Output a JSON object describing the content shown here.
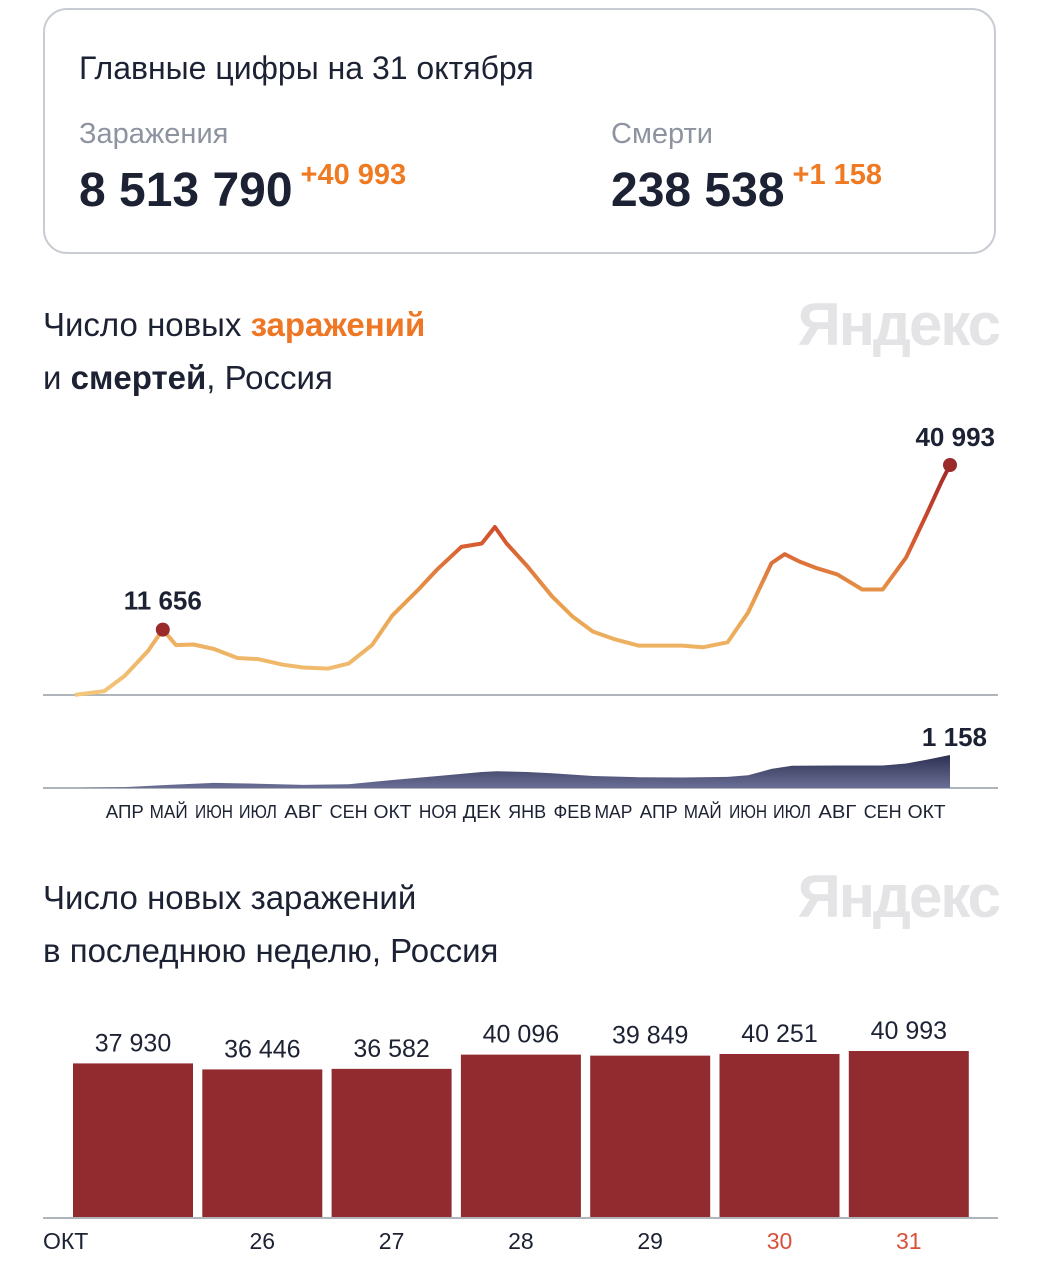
{
  "summary": {
    "title": "Главные цифры на 31 октября",
    "infections": {
      "label": "Заражения",
      "value": "8 513 790",
      "delta": "+40 993"
    },
    "deaths": {
      "label": "Смерти",
      "value": "238 538",
      "delta": "+1 158"
    }
  },
  "colors": {
    "accent_orange": "#ef7a22",
    "bar_red": "#922b30",
    "deaths_area": "#4a4e6e",
    "text_dark": "#1c2233"
  },
  "logo_text": "Яндекс",
  "chart1_title": {
    "part1": "Число новых ",
    "part2": "заражений",
    "part3": "и ",
    "part4": "смертей",
    "part5": ", Россия"
  },
  "chart2_title": {
    "line1": "Число новых заражений",
    "line2": "в последнюю неделю, Россия"
  },
  "chart_data": [
    {
      "type": "line",
      "series": [
        {
          "name": "заражений",
          "points": [
            [
              "2020-03-12",
              10
            ],
            [
              "2020-04-01",
              700
            ],
            [
              "2020-04-15",
              3400
            ],
            [
              "2020-05-01",
              7900
            ],
            [
              "2020-05-11",
              11656
            ],
            [
              "2020-05-20",
              8900
            ],
            [
              "2020-06-01",
              9000
            ],
            [
              "2020-06-15",
              8200
            ],
            [
              "2020-07-01",
              6600
            ],
            [
              "2020-07-15",
              6400
            ],
            [
              "2020-08-01",
              5400
            ],
            [
              "2020-08-15",
              4900
            ],
            [
              "2020-09-01",
              4700
            ],
            [
              "2020-09-15",
              5600
            ],
            [
              "2020-10-01",
              8900
            ],
            [
              "2020-10-15",
              14200
            ],
            [
              "2020-11-01",
              18600
            ],
            [
              "2020-11-15",
              22500
            ],
            [
              "2020-12-01",
              26400
            ],
            [
              "2020-12-15",
              27000
            ],
            [
              "2020-12-24",
              29935
            ],
            [
              "2021-01-01",
              27000
            ],
            [
              "2021-01-15",
              23000
            ],
            [
              "2021-02-01",
              17600
            ],
            [
              "2021-02-15",
              14000
            ],
            [
              "2021-03-01",
              11300
            ],
            [
              "2021-03-15",
              10000
            ],
            [
              "2021-04-01",
              8800
            ],
            [
              "2021-04-15",
              8800
            ],
            [
              "2021-05-01",
              8800
            ],
            [
              "2021-05-15",
              8500
            ],
            [
              "2021-06-01",
              9400
            ],
            [
              "2021-06-15",
              14700
            ],
            [
              "2021-07-01",
              23500
            ],
            [
              "2021-07-10",
              25100
            ],
            [
              "2021-07-20",
              23800
            ],
            [
              "2021-08-01",
              22600
            ],
            [
              "2021-08-15",
              21500
            ],
            [
              "2021-09-01",
              18800
            ],
            [
              "2021-09-15",
              18800
            ],
            [
              "2021-10-01",
              24500
            ],
            [
              "2021-10-15",
              32200
            ],
            [
              "2021-10-25",
              37900
            ],
            [
              "2021-10-31",
              40993
            ]
          ]
        },
        {
          "name": "смертей",
          "type": "area",
          "points": [
            [
              "2020-03-12",
              0
            ],
            [
              "2020-04-15",
              30
            ],
            [
              "2020-05-15",
              110
            ],
            [
              "2020-06-15",
              180
            ],
            [
              "2020-07-15",
              150
            ],
            [
              "2020-08-15",
              110
            ],
            [
              "2020-09-15",
              130
            ],
            [
              "2020-10-15",
              280
            ],
            [
              "2020-11-15",
              420
            ],
            [
              "2020-12-15",
              560
            ],
            [
              "2020-12-25",
              590
            ],
            [
              "2021-01-15",
              560
            ],
            [
              "2021-02-01",
              520
            ],
            [
              "2021-03-01",
              420
            ],
            [
              "2021-04-01",
              380
            ],
            [
              "2021-05-01",
              370
            ],
            [
              "2021-06-01",
              390
            ],
            [
              "2021-06-15",
              450
            ],
            [
              "2021-07-01",
              670
            ],
            [
              "2021-07-15",
              780
            ],
            [
              "2021-08-15",
              790
            ],
            [
              "2021-09-15",
              790
            ],
            [
              "2021-10-01",
              860
            ],
            [
              "2021-10-15",
              990
            ],
            [
              "2021-10-31",
              1158
            ]
          ]
        }
      ],
      "annotations": [
        {
          "date": "2020-05-11",
          "label": "11 656"
        },
        {
          "date": "2021-10-31",
          "label": "40 993"
        },
        {
          "date": "2021-10-31",
          "label": "1 158",
          "series": "смертей"
        }
      ],
      "x_tick_labels": [
        {
          "date": "2020-04-15",
          "label": "АПР"
        },
        {
          "date": "2020-05-15",
          "label": "МАЙ"
        },
        {
          "date": "2020-06-15",
          "label": "ИЮН"
        },
        {
          "date": "2020-07-15",
          "label": "ИЮЛ"
        },
        {
          "date": "2020-08-15",
          "label": "АВГ"
        },
        {
          "date": "2020-09-15",
          "label": "СЕН"
        },
        {
          "date": "2020-10-15",
          "label": "ОКТ"
        },
        {
          "date": "2020-11-15",
          "label": "НОЯ"
        },
        {
          "date": "2020-12-15",
          "label": "ДЕК"
        },
        {
          "date": "2021-01-15",
          "label": "ЯНВ"
        },
        {
          "date": "2021-02-15",
          "label": "ФЕВ"
        },
        {
          "date": "2021-03-15",
          "label": "МАР"
        },
        {
          "date": "2021-04-15",
          "label": "АПР"
        },
        {
          "date": "2021-05-15",
          "label": "МАЙ"
        },
        {
          "date": "2021-06-15",
          "label": "ИЮН"
        },
        {
          "date": "2021-07-15",
          "label": "ИЮЛ"
        },
        {
          "date": "2021-08-15",
          "label": "АВГ"
        },
        {
          "date": "2021-09-15",
          "label": "СЕН"
        },
        {
          "date": "2021-10-15",
          "label": "ОКТ"
        }
      ],
      "xlim": [
        "2020-03-12",
        "2021-10-31"
      ],
      "grid": false
    },
    {
      "type": "bar",
      "categories": [
        "ОКТ",
        "26",
        "27",
        "28",
        "29",
        "30",
        "31"
      ],
      "values": [
        37930,
        36446,
        36582,
        40096,
        39849,
        40251,
        40993
      ],
      "value_labels": [
        "37 930",
        "36 446",
        "36 582",
        "40 096",
        "39 849",
        "40 251",
        "40 993"
      ],
      "highlighted_categories": [
        "30",
        "31"
      ],
      "ylim": [
        0,
        41000
      ],
      "grid": false
    }
  ]
}
